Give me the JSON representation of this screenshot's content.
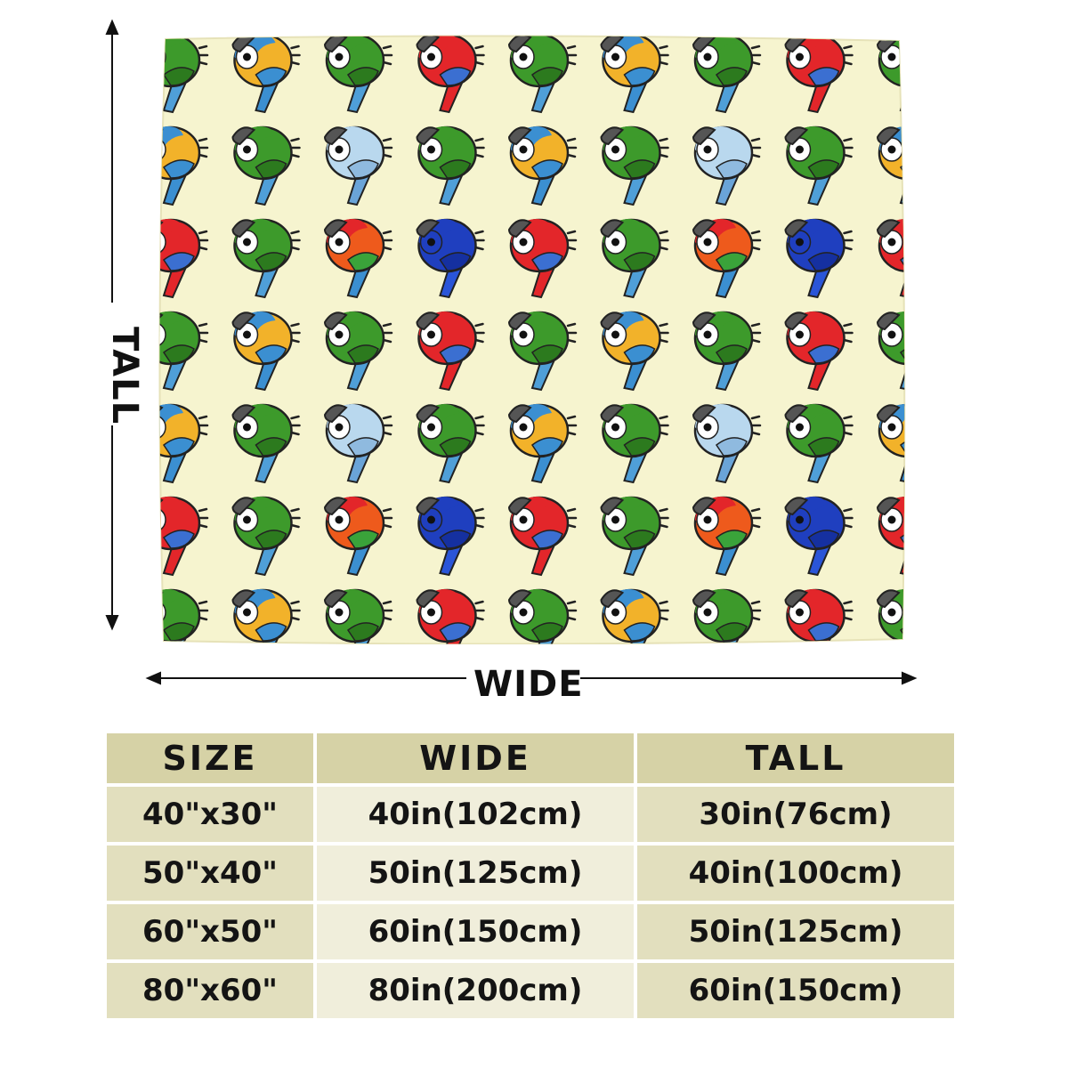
{
  "dimensions": {
    "tall_label": "TALL",
    "wide_label": "WIDE"
  },
  "colors": {
    "blanket_bg": "#f6f4cf",
    "header_bg": "#d6d2a6",
    "row_cell_dark": "#e2dfbe",
    "row_cell_light": "#f0eedb",
    "text": "#141414"
  },
  "pattern": {
    "motif": "cartoon-parrot",
    "row_palettes": [
      [
        "green",
        "blue-gold",
        "green",
        "scarlet",
        "green",
        "blue-gold",
        "green",
        "scarlet",
        "green"
      ],
      [
        "blue-gold",
        "green",
        "pale-blue",
        "green",
        "blue-gold",
        "green",
        "pale-blue",
        "green",
        "blue-gold"
      ],
      [
        "scarlet",
        "green",
        "orange",
        "royal-blue",
        "scarlet",
        "green",
        "orange",
        "royal-blue",
        "scarlet"
      ],
      [
        "green",
        "blue-gold",
        "green",
        "scarlet",
        "green",
        "blue-gold",
        "green",
        "scarlet",
        "green"
      ],
      [
        "blue-gold",
        "green",
        "pale-blue",
        "green",
        "blue-gold",
        "green",
        "pale-blue",
        "green",
        "blue-gold"
      ],
      [
        "scarlet",
        "green",
        "orange",
        "royal-blue",
        "scarlet",
        "green",
        "orange",
        "royal-blue",
        "scarlet"
      ]
    ]
  },
  "table": {
    "headers": [
      "SIZE",
      "WIDE",
      "TALL"
    ],
    "rows": [
      [
        "40\"x30\"",
        "40in(102cm)",
        "30in(76cm)"
      ],
      [
        "50\"x40\"",
        "50in(125cm)",
        "40in(100cm)"
      ],
      [
        "60\"x50\"",
        "60in(150cm)",
        "50in(125cm)"
      ],
      [
        "80\"x60\"",
        "80in(200cm)",
        "60in(150cm)"
      ]
    ]
  }
}
